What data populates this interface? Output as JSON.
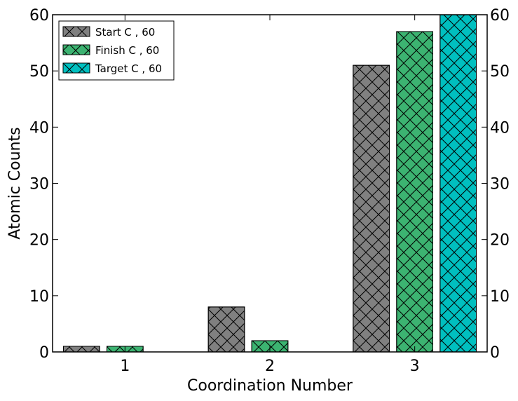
{
  "chart_data": {
    "type": "bar",
    "categories": [
      "1",
      "2",
      "3"
    ],
    "series": [
      {
        "name": "Start C , 60",
        "values": [
          1,
          8,
          51
        ],
        "color": "#808080"
      },
      {
        "name": "Finish C , 60",
        "values": [
          1,
          2,
          57
        ],
        "color": "#3cb371"
      },
      {
        "name": "Target C , 60",
        "values": [
          0,
          0,
          60
        ],
        "color": "#00bfbf"
      }
    ],
    "hatch": "cross-diagonal",
    "xlabel": "Coordination Number",
    "ylabel": "Atomic Counts",
    "ylim": [
      0,
      60
    ],
    "yticks": [
      0,
      10,
      20,
      30,
      40,
      50,
      60
    ],
    "secondary_y_axis": true,
    "grid": false,
    "legend_position": "top-left"
  }
}
